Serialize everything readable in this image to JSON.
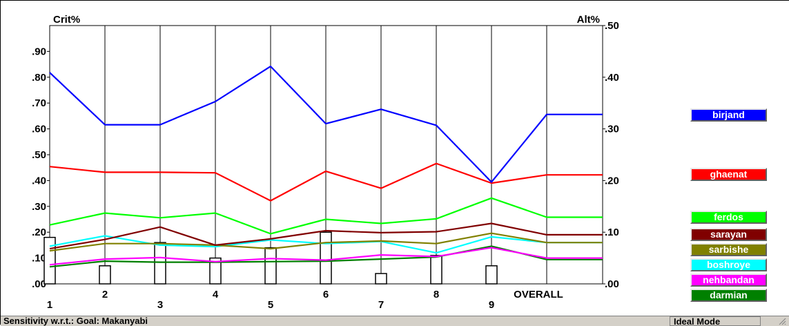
{
  "chart_data": {
    "type": "line",
    "left_axis_label": "Crit%",
    "right_axis_label": "Alt%",
    "left_axis_ticks": [
      ".00",
      ".10",
      ".20",
      ".30",
      ".40",
      ".50",
      ".60",
      ".70",
      ".80",
      ".90"
    ],
    "right_axis_ticks": [
      ".00",
      ".10",
      ".20",
      ".30",
      ".40",
      ".50"
    ],
    "left_ylim": [
      0,
      1
    ],
    "right_ylim": [
      0,
      0.5
    ],
    "categories": [
      "1",
      "2",
      "3",
      "4",
      "5",
      "6",
      "7",
      "8",
      "9",
      "OVERALL"
    ],
    "criteria_bars": [
      0.18,
      0.07,
      0.16,
      0.1,
      0.14,
      0.2,
      0.04,
      0.11,
      0.07
    ],
    "series": [
      {
        "name": "birjand",
        "color": "#0000ff",
        "values": [
          0.409,
          0.308,
          0.308,
          0.353,
          0.421,
          0.31,
          0.338,
          0.307,
          0.197,
          0.328
        ]
      },
      {
        "name": "ghaenat",
        "color": "#ff0000",
        "values": [
          0.227,
          0.216,
          0.216,
          0.215,
          0.161,
          0.218,
          0.185,
          0.233,
          0.195,
          0.211
        ]
      },
      {
        "name": "ferdos",
        "color": "#00ff00",
        "values": [
          0.114,
          0.137,
          0.128,
          0.137,
          0.097,
          0.125,
          0.117,
          0.126,
          0.166,
          0.129
        ]
      },
      {
        "name": "sarayan",
        "color": "#800000",
        "values": [
          0.068,
          0.086,
          0.11,
          0.075,
          0.087,
          0.103,
          0.099,
          0.101,
          0.117,
          0.095
        ]
      },
      {
        "name": "sarbishe",
        "color": "#808000",
        "values": [
          0.064,
          0.078,
          0.078,
          0.075,
          0.068,
          0.08,
          0.083,
          0.078,
          0.098,
          0.08
        ]
      },
      {
        "name": "boshroye",
        "color": "#00ffff",
        "values": [
          0.073,
          0.093,
          0.075,
          0.072,
          0.085,
          0.078,
          0.082,
          0.06,
          0.091,
          0.08
        ]
      },
      {
        "name": "nehbandan",
        "color": "#ff00ff",
        "values": [
          0.037,
          0.048,
          0.051,
          0.043,
          0.049,
          0.046,
          0.056,
          0.053,
          0.07,
          0.05
        ]
      },
      {
        "name": "darmian",
        "color": "#008000",
        "values": [
          0.033,
          0.044,
          0.042,
          0.042,
          0.043,
          0.044,
          0.048,
          0.052,
          0.073,
          0.047
        ]
      }
    ]
  },
  "status": {
    "text": "Sensitivity w.r.t.: Goal: Makanyabi",
    "mode": "Ideal Mode"
  }
}
